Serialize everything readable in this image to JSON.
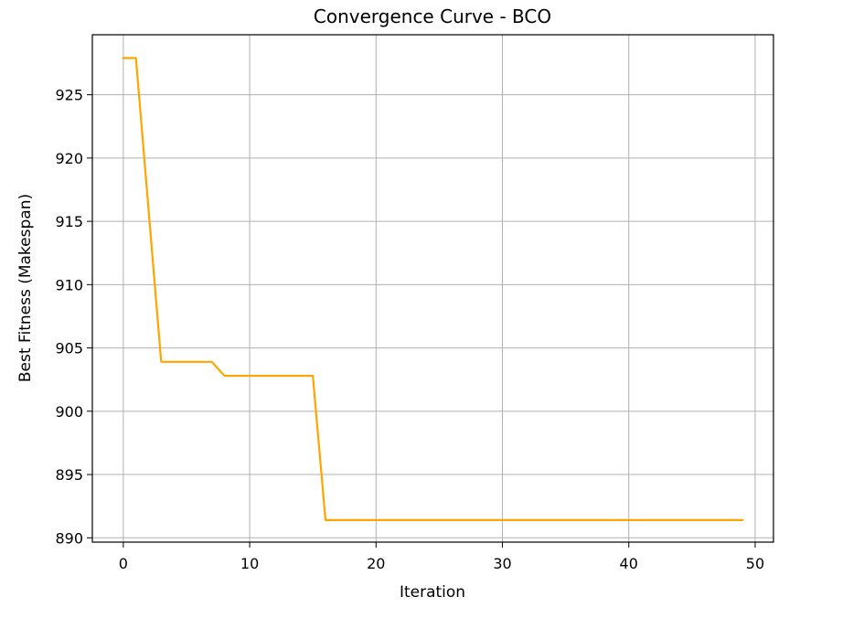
{
  "chart_data": {
    "type": "line",
    "title": "Convergence Curve - BCO",
    "xlabel": "Iteration",
    "ylabel": "Best Fitness (Makespan)",
    "xlim": [
      -2.45,
      51.45
    ],
    "ylim": [
      889.66,
      929.74
    ],
    "xticks": [
      0,
      10,
      20,
      30,
      40,
      50
    ],
    "yticks": [
      890,
      895,
      900,
      905,
      910,
      915,
      920,
      925
    ],
    "grid": true,
    "legend": "none",
    "series": [
      {
        "color": "#FFA500",
        "x": [
          0,
          1,
          2,
          3,
          4,
          5,
          6,
          7,
          8,
          9,
          10,
          11,
          12,
          13,
          14,
          15,
          16,
          17,
          18,
          19,
          20,
          21,
          22,
          23,
          24,
          25,
          26,
          27,
          28,
          29,
          30,
          31,
          32,
          33,
          34,
          35,
          36,
          37,
          38,
          39,
          40,
          41,
          42,
          43,
          44,
          45,
          46,
          47,
          48,
          49
        ],
        "values": [
          927.9,
          927.9,
          915.9,
          903.9,
          903.9,
          903.9,
          903.9,
          903.9,
          902.8,
          902.8,
          902.8,
          902.8,
          902.8,
          902.8,
          902.8,
          902.8,
          891.4,
          891.4,
          891.4,
          891.4,
          891.4,
          891.4,
          891.4,
          891.4,
          891.4,
          891.4,
          891.4,
          891.4,
          891.4,
          891.4,
          891.4,
          891.4,
          891.4,
          891.4,
          891.4,
          891.4,
          891.4,
          891.4,
          891.4,
          891.4,
          891.4,
          891.4,
          891.4,
          891.4,
          891.4,
          891.4,
          891.4,
          891.4,
          891.4,
          891.4
        ]
      }
    ]
  }
}
